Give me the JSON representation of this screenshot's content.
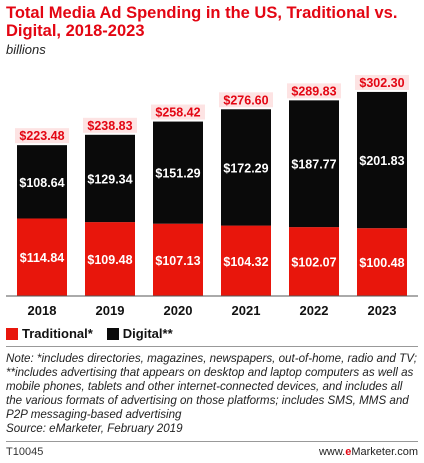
{
  "colors": {
    "traditional": "#e8160c",
    "digital": "#0a0a0a",
    "accent": "#e30613",
    "total_label_bg": "#fde3e3"
  },
  "header": {
    "title": "Total Media Ad Spending in the US, Traditional vs. Digital, 2018-2023",
    "subtitle": "billions"
  },
  "chart_data": {
    "type": "bar",
    "stacked": true,
    "categories": [
      "2018",
      "2019",
      "2020",
      "2021",
      "2022",
      "2023"
    ],
    "series": [
      {
        "name": "Traditional*",
        "values": [
          114.84,
          109.48,
          107.13,
          104.32,
          102.07,
          100.48
        ]
      },
      {
        "name": "Digital**",
        "values": [
          108.64,
          129.34,
          151.29,
          172.29,
          187.77,
          201.83
        ]
      }
    ],
    "totals": [
      223.48,
      238.83,
      258.42,
      276.6,
      289.83,
      302.3
    ],
    "value_labels": {
      "traditional": [
        "$114.84",
        "$109.48",
        "$107.13",
        "$104.32",
        "$102.07",
        "$100.48"
      ],
      "digital": [
        "$108.64",
        "$129.34",
        "$151.29",
        "$172.29",
        "$187.77",
        "$201.83"
      ],
      "totals": [
        "$223.48",
        "$238.83",
        "$258.42",
        "$276.60",
        "$289.83",
        "$302.30"
      ]
    },
    "ylim": [
      0,
      320
    ],
    "grid": false,
    "legend": "bottom-left"
  },
  "legend": {
    "traditional_label": "Traditional*",
    "digital_label": "Digital**"
  },
  "note": {
    "text": "Note: *includes directories, magazines, newspapers, out-of-home, radio and TV; **includes advertising that appears on desktop and laptop computers as well as mobile phones, tablets and other internet-connected devices, and includes all the various formats of advertising on those platforms; includes SMS, MMS and P2P messaging-based advertising",
    "source": "Source: eMarketer, February 2019"
  },
  "footer": {
    "id": "T10045",
    "brand_prefix": "www.",
    "brand_e": "e",
    "brand_rest": "Marketer.com"
  }
}
